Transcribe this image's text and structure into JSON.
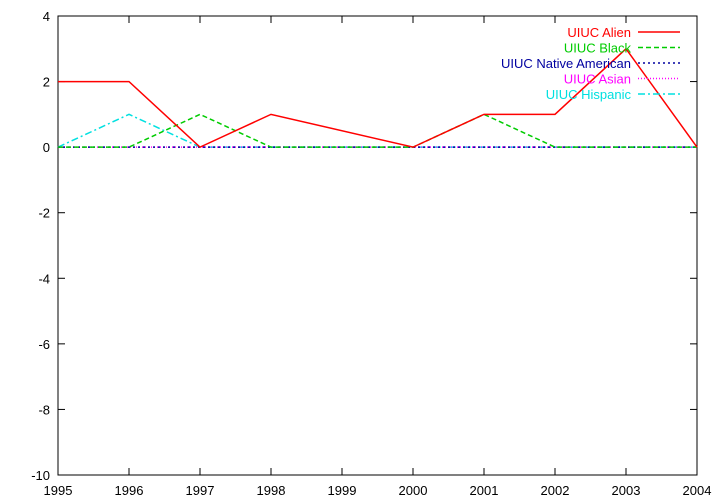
{
  "chart_data": {
    "type": "line",
    "title": "",
    "xlabel": "",
    "ylabel": "",
    "x": [
      1995,
      1996,
      1997,
      1998,
      1999,
      2000,
      2001,
      2002,
      2003,
      2004
    ],
    "xlim": [
      1995,
      2004
    ],
    "ylim": [
      -10,
      4
    ],
    "xticks": [
      "1995",
      "1996",
      "1997",
      "1998",
      "1999",
      "2000",
      "2001",
      "2002",
      "2003",
      "2004"
    ],
    "yticks": [
      "4",
      "2",
      "0",
      "-2",
      "-4",
      "-6",
      "-8",
      "-10"
    ],
    "grid": false,
    "legend_position": "top-right",
    "series": [
      {
        "name": "UIUC Alien",
        "color": "#ff0000",
        "dash": "solid",
        "values": [
          2,
          2,
          0,
          1,
          null,
          0,
          1,
          1,
          3,
          0
        ]
      },
      {
        "name": "UIUC Black",
        "color": "#00cc00",
        "dash": "dashed",
        "values": [
          0,
          0,
          1,
          0,
          0,
          0,
          1,
          0,
          0,
          0
        ]
      },
      {
        "name": "UIUC Native American",
        "color": "#0000a0",
        "dash": "dotted",
        "values": [
          0,
          0,
          0,
          0,
          0,
          0,
          0,
          0,
          0,
          0
        ]
      },
      {
        "name": "UIUC Asian",
        "color": "#ff00ff",
        "dash": "fine-dotted",
        "values": [
          0,
          0,
          0,
          0,
          0,
          0,
          0,
          0,
          0,
          0
        ]
      },
      {
        "name": "UIUC Hispanic",
        "color": "#00e0e0",
        "dash": "dash-dot",
        "values": [
          0,
          1,
          0,
          0,
          0,
          0,
          0,
          0,
          0,
          0
        ]
      }
    ]
  }
}
